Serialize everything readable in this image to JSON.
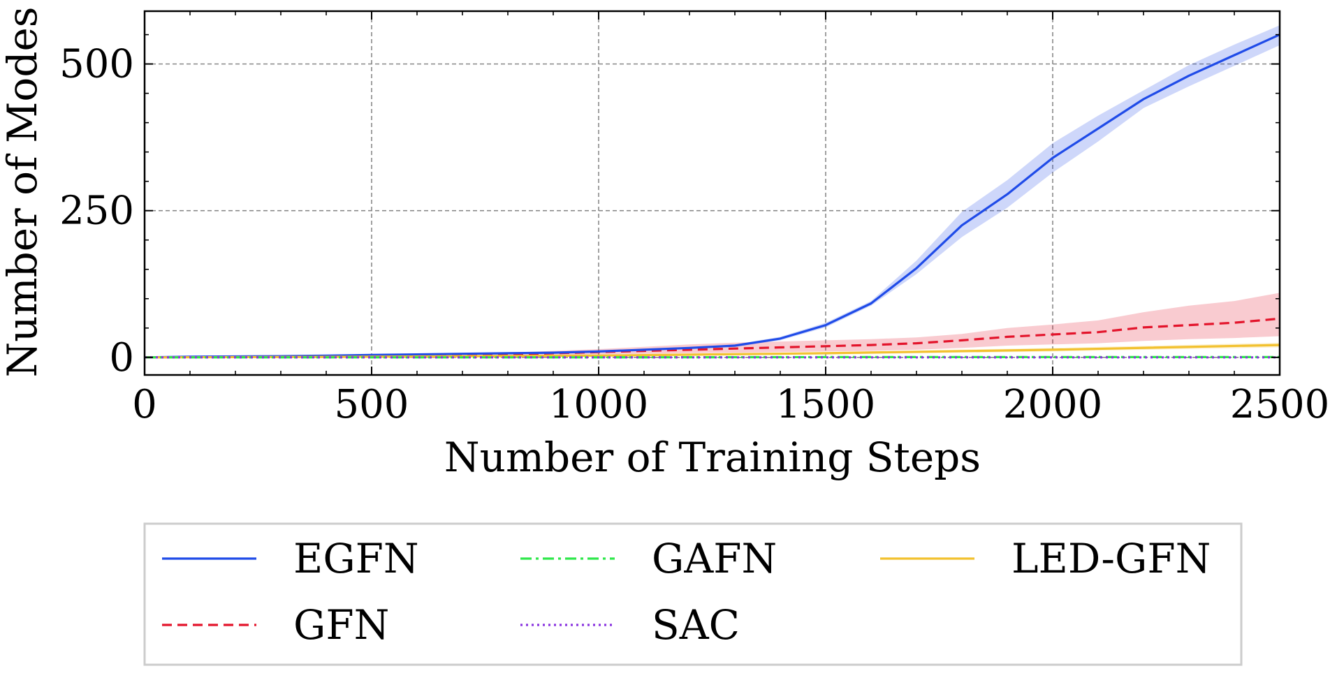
{
  "chart_data": {
    "type": "line",
    "title": "",
    "xlabel": "Number of Training Steps",
    "ylabel": "Number of Modes",
    "xlim": [
      0,
      2500
    ],
    "ylim": [
      -30,
      590
    ],
    "xticks": [
      0,
      500,
      1000,
      1500,
      2000,
      2500
    ],
    "yticks": [
      0,
      250,
      500
    ],
    "xtick_labels": [
      "0",
      "500",
      "1000",
      "1500",
      "2000",
      "2500"
    ],
    "ytick_labels": [
      "0",
      "250",
      "500"
    ],
    "grid": true,
    "legend": {
      "placement": "below-center",
      "columns": 3
    },
    "series": [
      {
        "name": "EGFN",
        "color": "#1f4be8",
        "style": "solid",
        "x": [
          0,
          100,
          200,
          300,
          400,
          500,
          600,
          700,
          800,
          900,
          1000,
          1100,
          1200,
          1300,
          1400,
          1500,
          1600,
          1700,
          1800,
          1900,
          2000,
          2100,
          2200,
          2300,
          2400,
          2500
        ],
        "y": [
          0,
          1,
          1.5,
          2,
          3,
          4,
          5,
          6,
          7,
          8,
          10,
          13,
          16,
          20,
          32,
          55,
          92,
          152,
          225,
          278,
          340,
          390,
          440,
          480,
          515,
          550
        ],
        "lower": [
          0,
          0.5,
          1,
          1.5,
          2,
          3,
          4,
          5,
          6,
          7,
          9,
          12,
          15,
          18,
          29,
          51,
          88,
          142,
          205,
          255,
          315,
          368,
          425,
          462,
          497,
          532
        ],
        "upper": [
          0,
          1.5,
          2,
          2.5,
          4,
          5,
          6,
          7,
          8,
          9,
          11,
          14,
          17,
          22,
          35,
          59,
          96,
          165,
          248,
          302,
          365,
          412,
          455,
          498,
          533,
          566
        ]
      },
      {
        "name": "GFN",
        "color": "#e3142b",
        "style": "dashed",
        "x": [
          0,
          100,
          200,
          300,
          400,
          500,
          600,
          700,
          800,
          900,
          1000,
          1100,
          1200,
          1300,
          1400,
          1500,
          1600,
          1700,
          1800,
          1900,
          2000,
          2100,
          2200,
          2300,
          2400,
          2500
        ],
        "y": [
          0,
          0.5,
          1,
          1.5,
          2,
          2.5,
          3,
          4,
          5,
          7,
          9,
          11,
          13,
          15,
          17,
          19,
          21,
          24,
          29,
          35,
          39,
          43,
          51,
          55,
          59,
          66
        ],
        "lower": [
          0,
          0,
          0.5,
          1,
          1,
          1.5,
          2,
          2,
          3,
          4,
          5,
          6,
          7,
          8,
          9,
          10,
          11,
          13,
          16,
          20,
          22,
          24,
          28,
          31,
          33,
          36
        ],
        "upper": [
          0,
          1,
          1.5,
          2,
          3,
          3.5,
          4,
          6,
          8,
          11,
          14,
          18,
          22,
          25,
          27,
          29,
          31,
          34,
          40,
          50,
          56,
          63,
          77,
          88,
          96,
          110
        ]
      },
      {
        "name": "GAFN",
        "color": "#2ee84a",
        "style": "dashdot",
        "x": [
          0,
          500,
          1000,
          1500,
          2000,
          2500
        ],
        "y": [
          0,
          0,
          0,
          0.5,
          0.5,
          0.5
        ],
        "lower": [
          0,
          0,
          0,
          0,
          0,
          0
        ],
        "upper": [
          0,
          0.5,
          0.5,
          1,
          1,
          1
        ]
      },
      {
        "name": "SAC",
        "color": "#8a35e0",
        "style": "dotted",
        "x": [
          0,
          500,
          1000,
          1500,
          2000,
          2500
        ],
        "y": [
          0,
          0,
          0,
          0,
          0,
          0
        ],
        "lower": [
          0,
          0,
          0,
          0,
          0,
          0
        ],
        "upper": [
          0,
          0,
          0,
          0,
          0,
          0
        ]
      },
      {
        "name": "LED-GFN",
        "color": "#f2c12e",
        "style": "solid",
        "x": [
          0,
          500,
          1000,
          1500,
          2000,
          2500
        ],
        "y": [
          0,
          1,
          3,
          7,
          13,
          21
        ],
        "lower": [
          0,
          0.5,
          2,
          5,
          10,
          17
        ],
        "upper": [
          0,
          1.5,
          4,
          9,
          16,
          25
        ]
      }
    ]
  }
}
